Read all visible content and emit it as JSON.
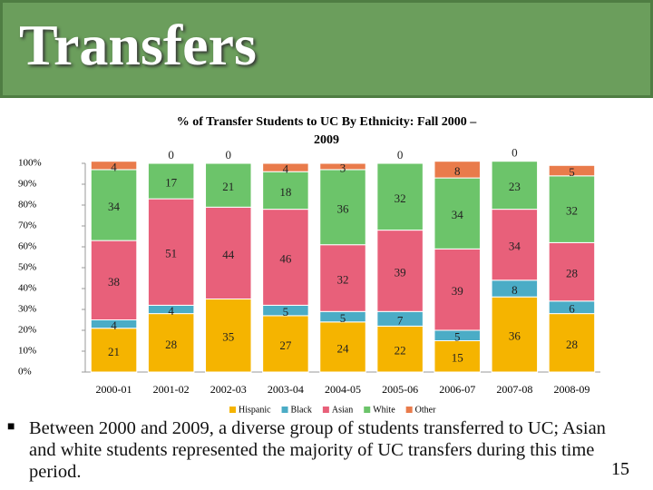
{
  "slide": {
    "title": "Transfers",
    "bullet": "Between 2000 and 2009, a diverse group of students transferred to UC; Asian and white students represented the majority of UC transfers during this time period.",
    "page_number": "15"
  },
  "chart_data": {
    "type": "stacked_bar",
    "title": "% of Transfer Students to UC By Ethnicity: Fall 2000 – 2009",
    "categories": [
      "2000-01",
      "2001-02",
      "2002-03",
      "2003-04",
      "2004-05",
      "2005-06",
      "2006-07",
      "2007-08",
      "2008-09"
    ],
    "series": [
      {
        "name": "Hispanic",
        "color": "#f5b400",
        "values": [
          21,
          28,
          35,
          27,
          24,
          22,
          15,
          36,
          28
        ]
      },
      {
        "name": "Black",
        "color": "#4bacc6",
        "values": [
          4,
          4,
          0,
          5,
          5,
          7,
          5,
          8,
          6
        ]
      },
      {
        "name": "Asian",
        "color": "#e8607a",
        "values": [
          38,
          51,
          44,
          46,
          32,
          39,
          39,
          34,
          28
        ]
      },
      {
        "name": "White",
        "color": "#6cc46a",
        "values": [
          34,
          17,
          21,
          18,
          36,
          32,
          34,
          23,
          32
        ]
      },
      {
        "name": "Other",
        "color": "#e97b4b",
        "values": [
          4,
          0,
          0,
          4,
          3,
          0,
          8,
          0,
          5
        ]
      }
    ],
    "ylim": [
      0,
      100
    ],
    "yticks": [
      {
        "value": 0,
        "label": "0%"
      },
      {
        "value": 10,
        "label": "10%"
      },
      {
        "value": 20,
        "label": "20%"
      },
      {
        "value": 30,
        "label": "30%"
      },
      {
        "value": 40,
        "label": "40%"
      },
      {
        "value": 50,
        "label": "50%"
      },
      {
        "value": 60,
        "label": "60%"
      },
      {
        "value": 70,
        "label": "70%"
      },
      {
        "value": 80,
        "label": "80%"
      },
      {
        "value": 90,
        "label": "90%"
      },
      {
        "value": 100,
        "label": "100%"
      }
    ],
    "legend": "bottom"
  }
}
